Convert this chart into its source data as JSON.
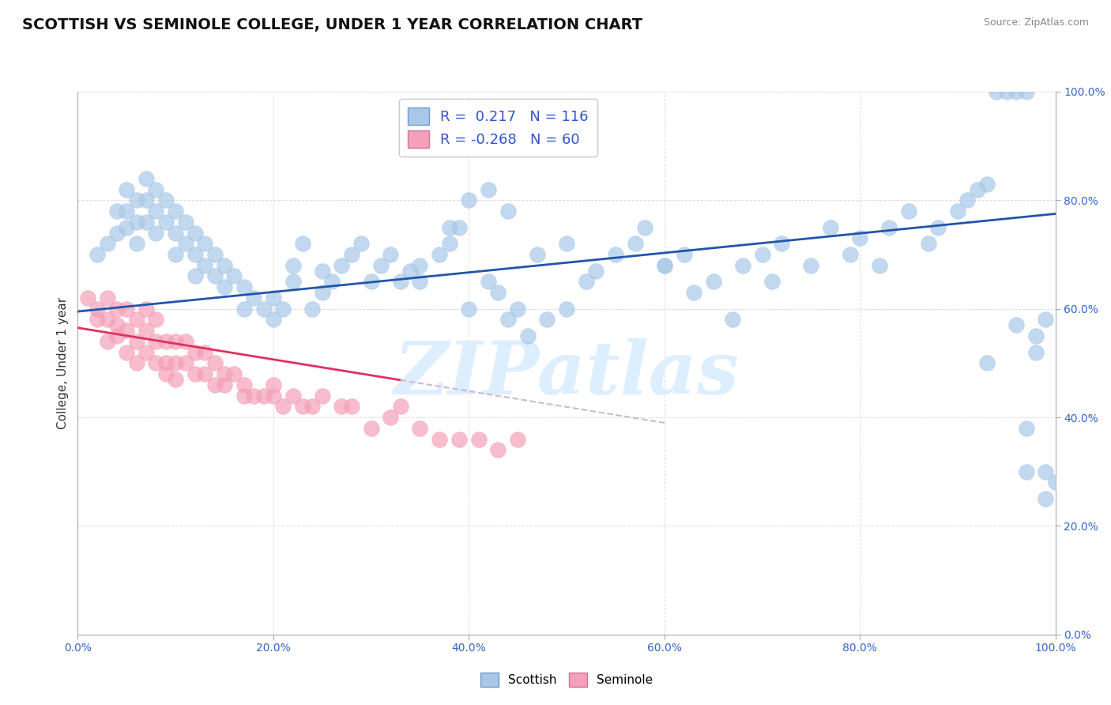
{
  "title": "SCOTTISH VS SEMINOLE COLLEGE, UNDER 1 YEAR CORRELATION CHART",
  "source_text": "Source: ZipAtlas.com",
  "ylabel": "College, Under 1 year",
  "xlim": [
    0.0,
    1.0
  ],
  "ylim": [
    0.0,
    1.0
  ],
  "x_tick_positions": [
    0.0,
    0.2,
    0.4,
    0.6,
    0.8,
    1.0
  ],
  "y_tick_positions": [
    0.0,
    0.2,
    0.4,
    0.6,
    0.8,
    1.0
  ],
  "scottish_R": 0.217,
  "scottish_N": 116,
  "seminole_R": -0.268,
  "seminole_N": 60,
  "scottish_color": "#a8c8e8",
  "seminole_color": "#f4a0b8",
  "scottish_line_color": "#2255aa",
  "seminole_line_color": "#e03060",
  "trend_line_color": "#ccbbcc",
  "background_color": "#ffffff",
  "grid_color": "#dddddd",
  "watermark_text": "ZIPatlas",
  "watermark_color": "#ddeeff",
  "legend_labels": [
    "Scottish",
    "Seminole"
  ],
  "title_fontsize": 14,
  "label_fontsize": 11,
  "tick_fontsize": 10,
  "scottish_x": [
    0.02,
    0.03,
    0.04,
    0.04,
    0.05,
    0.05,
    0.05,
    0.06,
    0.06,
    0.06,
    0.07,
    0.07,
    0.07,
    0.08,
    0.08,
    0.08,
    0.09,
    0.09,
    0.1,
    0.1,
    0.1,
    0.11,
    0.11,
    0.12,
    0.12,
    0.12,
    0.13,
    0.13,
    0.14,
    0.14,
    0.15,
    0.15,
    0.16,
    0.17,
    0.17,
    0.18,
    0.19,
    0.2,
    0.2,
    0.21,
    0.22,
    0.22,
    0.23,
    0.24,
    0.25,
    0.25,
    0.26,
    0.27,
    0.28,
    0.29,
    0.3,
    0.31,
    0.32,
    0.33,
    0.34,
    0.35,
    0.35,
    0.37,
    0.38,
    0.39,
    0.4,
    0.42,
    0.43,
    0.44,
    0.45,
    0.46,
    0.48,
    0.5,
    0.52,
    0.53,
    0.55,
    0.57,
    0.58,
    0.6,
    0.62,
    0.63,
    0.65,
    0.67,
    0.68,
    0.7,
    0.71,
    0.72,
    0.75,
    0.77,
    0.79,
    0.8,
    0.82,
    0.83,
    0.85,
    0.87,
    0.88,
    0.9,
    0.91,
    0.92,
    0.93,
    0.94,
    0.95,
    0.96,
    0.97,
    0.97,
    0.98,
    0.98,
    0.99,
    0.99,
    1.0,
    0.96,
    0.93,
    0.97,
    0.99,
    0.5,
    0.44,
    0.42,
    0.4,
    0.38,
    0.47,
    0.6
  ],
  "scottish_y": [
    0.7,
    0.72,
    0.78,
    0.74,
    0.82,
    0.78,
    0.75,
    0.8,
    0.76,
    0.72,
    0.84,
    0.8,
    0.76,
    0.82,
    0.78,
    0.74,
    0.8,
    0.76,
    0.78,
    0.74,
    0.7,
    0.76,
    0.72,
    0.74,
    0.7,
    0.66,
    0.72,
    0.68,
    0.7,
    0.66,
    0.68,
    0.64,
    0.66,
    0.64,
    0.6,
    0.62,
    0.6,
    0.62,
    0.58,
    0.6,
    0.65,
    0.68,
    0.72,
    0.6,
    0.63,
    0.67,
    0.65,
    0.68,
    0.7,
    0.72,
    0.65,
    0.68,
    0.7,
    0.65,
    0.67,
    0.65,
    0.68,
    0.7,
    0.72,
    0.75,
    0.6,
    0.65,
    0.63,
    0.58,
    0.6,
    0.55,
    0.58,
    0.6,
    0.65,
    0.67,
    0.7,
    0.72,
    0.75,
    0.68,
    0.7,
    0.63,
    0.65,
    0.58,
    0.68,
    0.7,
    0.65,
    0.72,
    0.68,
    0.75,
    0.7,
    0.73,
    0.68,
    0.75,
    0.78,
    0.72,
    0.75,
    0.78,
    0.8,
    0.82,
    0.83,
    1.0,
    1.0,
    1.0,
    1.0,
    0.38,
    0.55,
    0.52,
    0.58,
    0.25,
    0.28,
    0.57,
    0.5,
    0.3,
    0.3,
    0.72,
    0.78,
    0.82,
    0.8,
    0.75,
    0.7,
    0.68
  ],
  "seminole_x": [
    0.01,
    0.02,
    0.02,
    0.03,
    0.03,
    0.03,
    0.04,
    0.04,
    0.04,
    0.05,
    0.05,
    0.05,
    0.06,
    0.06,
    0.06,
    0.07,
    0.07,
    0.07,
    0.08,
    0.08,
    0.08,
    0.09,
    0.09,
    0.09,
    0.1,
    0.1,
    0.1,
    0.11,
    0.11,
    0.12,
    0.12,
    0.13,
    0.13,
    0.14,
    0.14,
    0.15,
    0.15,
    0.16,
    0.17,
    0.17,
    0.18,
    0.19,
    0.2,
    0.2,
    0.21,
    0.22,
    0.23,
    0.24,
    0.25,
    0.27,
    0.28,
    0.3,
    0.32,
    0.33,
    0.35,
    0.37,
    0.39,
    0.41,
    0.43,
    0.45
  ],
  "seminole_y": [
    0.62,
    0.6,
    0.58,
    0.58,
    0.54,
    0.62,
    0.55,
    0.6,
    0.57,
    0.52,
    0.56,
    0.6,
    0.54,
    0.58,
    0.5,
    0.52,
    0.56,
    0.6,
    0.5,
    0.54,
    0.58,
    0.5,
    0.54,
    0.48,
    0.5,
    0.54,
    0.47,
    0.5,
    0.54,
    0.48,
    0.52,
    0.48,
    0.52,
    0.5,
    0.46,
    0.46,
    0.48,
    0.48,
    0.46,
    0.44,
    0.44,
    0.44,
    0.46,
    0.44,
    0.42,
    0.44,
    0.42,
    0.42,
    0.44,
    0.42,
    0.42,
    0.38,
    0.4,
    0.42,
    0.38,
    0.36,
    0.36,
    0.36,
    0.34,
    0.36
  ],
  "seminole_line_end_solid": 0.33,
  "scottish_line_start_y": 0.595,
  "scottish_line_end_y": 0.775,
  "seminole_line_start_y": 0.565,
  "seminole_line_end_y": 0.39
}
